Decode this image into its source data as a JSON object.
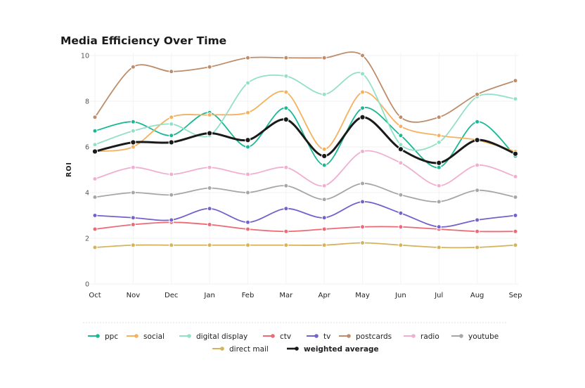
{
  "chart_data": {
    "type": "line",
    "title": "Media Efficiency Over Time",
    "xlabel": "",
    "ylabel": "ROI",
    "ylim": [
      0,
      10
    ],
    "yticks": [
      0,
      2,
      4,
      6,
      8,
      10
    ],
    "categories": [
      "Oct",
      "Nov",
      "Dec",
      "Jan",
      "Feb",
      "Mar",
      "Apr",
      "May",
      "Jun",
      "Jul",
      "Aug",
      "Sep"
    ],
    "grid": true,
    "legend_position": "bottom",
    "series": [
      {
        "name": "ppc",
        "color": "#1bb894",
        "values": [
          6.7,
          7.1,
          6.5,
          7.5,
          6.0,
          7.7,
          5.2,
          7.7,
          6.5,
          5.1,
          7.1,
          5.6
        ]
      },
      {
        "name": "social",
        "color": "#f6b15e",
        "values": [
          5.8,
          6.0,
          7.3,
          7.4,
          7.5,
          8.4,
          5.9,
          8.4,
          6.9,
          6.5,
          6.3,
          5.8
        ]
      },
      {
        "name": "digital display",
        "color": "#93e0c8",
        "values": [
          6.1,
          6.7,
          7.0,
          6.5,
          8.8,
          9.1,
          8.3,
          9.2,
          6.1,
          6.2,
          8.2,
          8.1
        ]
      },
      {
        "name": "ctv",
        "color": "#ec6a74",
        "values": [
          2.4,
          2.6,
          2.7,
          2.6,
          2.4,
          2.3,
          2.4,
          2.5,
          2.5,
          2.4,
          2.3,
          2.3
        ]
      },
      {
        "name": "tv",
        "color": "#7461cc",
        "values": [
          3.0,
          2.9,
          2.8,
          3.3,
          2.7,
          3.3,
          2.9,
          3.6,
          3.1,
          2.5,
          2.8,
          3.0
        ]
      },
      {
        "name": "postcards",
        "color": "#bd8d6b",
        "values": [
          7.3,
          9.5,
          9.3,
          9.5,
          9.9,
          9.9,
          9.9,
          10.0,
          7.3,
          7.3,
          8.3,
          8.9
        ]
      },
      {
        "name": "radio",
        "color": "#f0afd0",
        "values": [
          4.6,
          5.1,
          4.8,
          5.1,
          4.8,
          5.1,
          4.3,
          5.8,
          5.3,
          4.3,
          5.2,
          4.7
        ]
      },
      {
        "name": "youtube",
        "color": "#a6a6a6",
        "values": [
          3.8,
          4.0,
          3.9,
          4.2,
          4.0,
          4.3,
          3.7,
          4.4,
          3.9,
          3.6,
          4.1,
          3.8
        ]
      },
      {
        "name": "direct mail",
        "color": "#d4b45a",
        "values": [
          1.6,
          1.7,
          1.7,
          1.7,
          1.7,
          1.7,
          1.7,
          1.8,
          1.7,
          1.6,
          1.6,
          1.7
        ]
      },
      {
        "name": "weighted average",
        "color": "#1a1a1a",
        "bold": true,
        "values": [
          5.8,
          6.2,
          6.2,
          6.6,
          6.3,
          7.2,
          5.6,
          7.3,
          5.9,
          5.3,
          6.3,
          5.7
        ]
      }
    ]
  }
}
